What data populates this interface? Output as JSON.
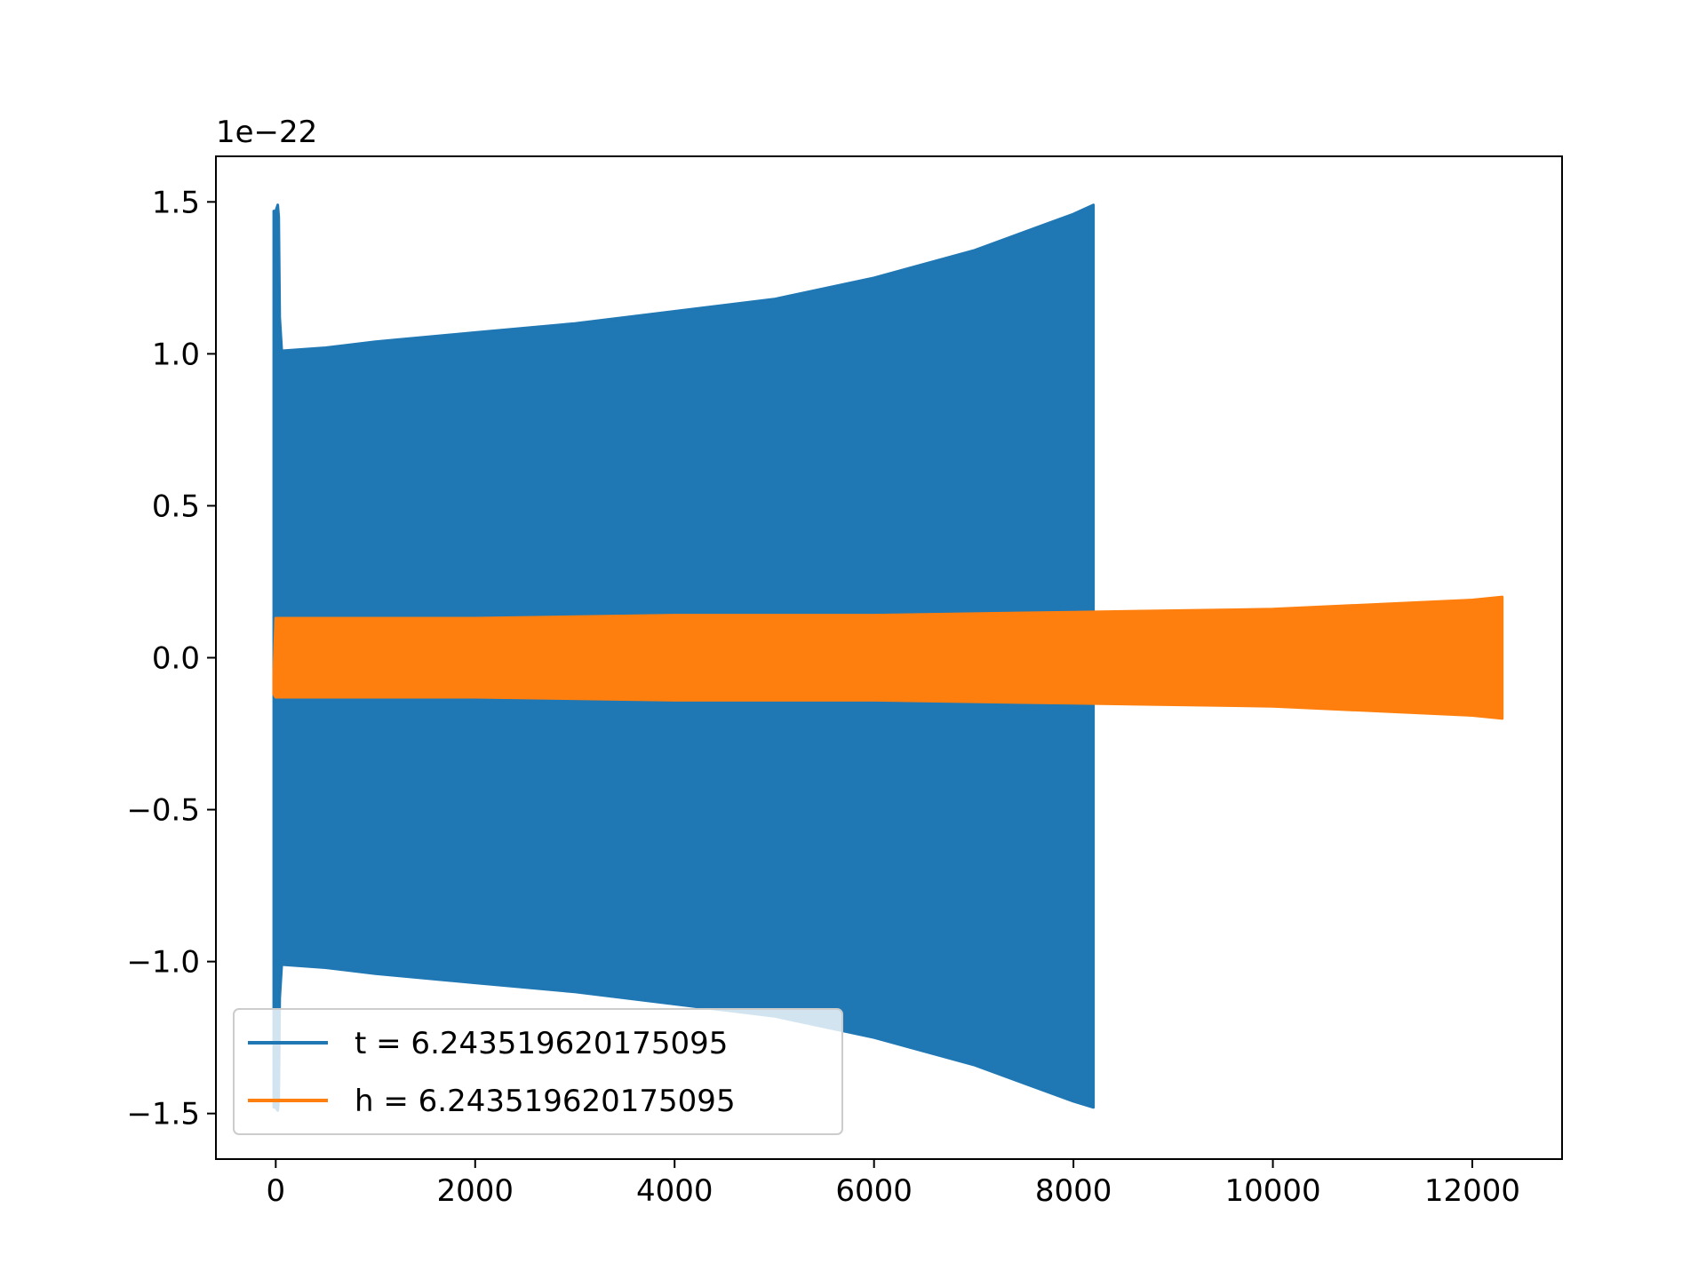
{
  "chart_data": {
    "type": "area",
    "title": "",
    "xlabel": "",
    "ylabel": "",
    "y_offset_text": "1e−22",
    "y_scale": 1e-22,
    "xlim": [
      -600,
      12900
    ],
    "ylim": [
      -1.65,
      1.65
    ],
    "xticks": [
      0,
      2000,
      4000,
      6000,
      8000,
      10000,
      12000
    ],
    "xtick_labels": [
      "0",
      "2000",
      "4000",
      "6000",
      "8000",
      "10000",
      "12000"
    ],
    "yticks": [
      -1.5,
      -1.0,
      -0.5,
      0.0,
      0.5,
      1.0,
      1.5
    ],
    "ytick_labels": [
      "−1.5",
      "−1.0",
      "−0.5",
      "0.0",
      "0.5",
      "1.0",
      "1.5"
    ],
    "grid": false,
    "legend_position": "lower-left",
    "series": [
      {
        "name": "t = 6.243519620175095",
        "color": "#1f77b4",
        "style": "dense-oscillation",
        "upper_envelope": {
          "x": [
            -20,
            0,
            20,
            30,
            40,
            60,
            500,
            1000,
            2000,
            3000,
            4000,
            5000,
            6000,
            7000,
            7500,
            8000,
            8200
          ],
          "y": [
            1.47,
            1.47,
            1.49,
            1.45,
            1.12,
            1.01,
            1.02,
            1.04,
            1.07,
            1.1,
            1.14,
            1.18,
            1.25,
            1.34,
            1.4,
            1.46,
            1.49
          ]
        },
        "lower_envelope": {
          "x": [
            -20,
            0,
            20,
            30,
            40,
            60,
            500,
            1000,
            2000,
            3000,
            4000,
            5000,
            6000,
            7000,
            7500,
            8000,
            8200
          ],
          "y": [
            -1.48,
            -1.48,
            -1.49,
            -1.45,
            -1.12,
            -1.01,
            -1.02,
            -1.04,
            -1.07,
            -1.1,
            -1.14,
            -1.18,
            -1.25,
            -1.34,
            -1.4,
            -1.46,
            -1.48
          ]
        }
      },
      {
        "name": "h = 6.243519620175095",
        "color": "#ff7f0e",
        "style": "dense-oscillation",
        "upper_envelope": {
          "x": [
            -20,
            0,
            2000,
            4000,
            6000,
            8000,
            10000,
            12000,
            12300
          ],
          "y": [
            -0.05,
            0.13,
            0.13,
            0.14,
            0.14,
            0.15,
            0.16,
            0.19,
            0.2
          ]
        },
        "lower_envelope": {
          "x": [
            -20,
            0,
            2000,
            4000,
            6000,
            8000,
            10000,
            12000,
            12300
          ],
          "y": [
            -0.12,
            -0.13,
            -0.13,
            -0.14,
            -0.14,
            -0.15,
            -0.16,
            -0.19,
            -0.2
          ]
        }
      }
    ]
  }
}
